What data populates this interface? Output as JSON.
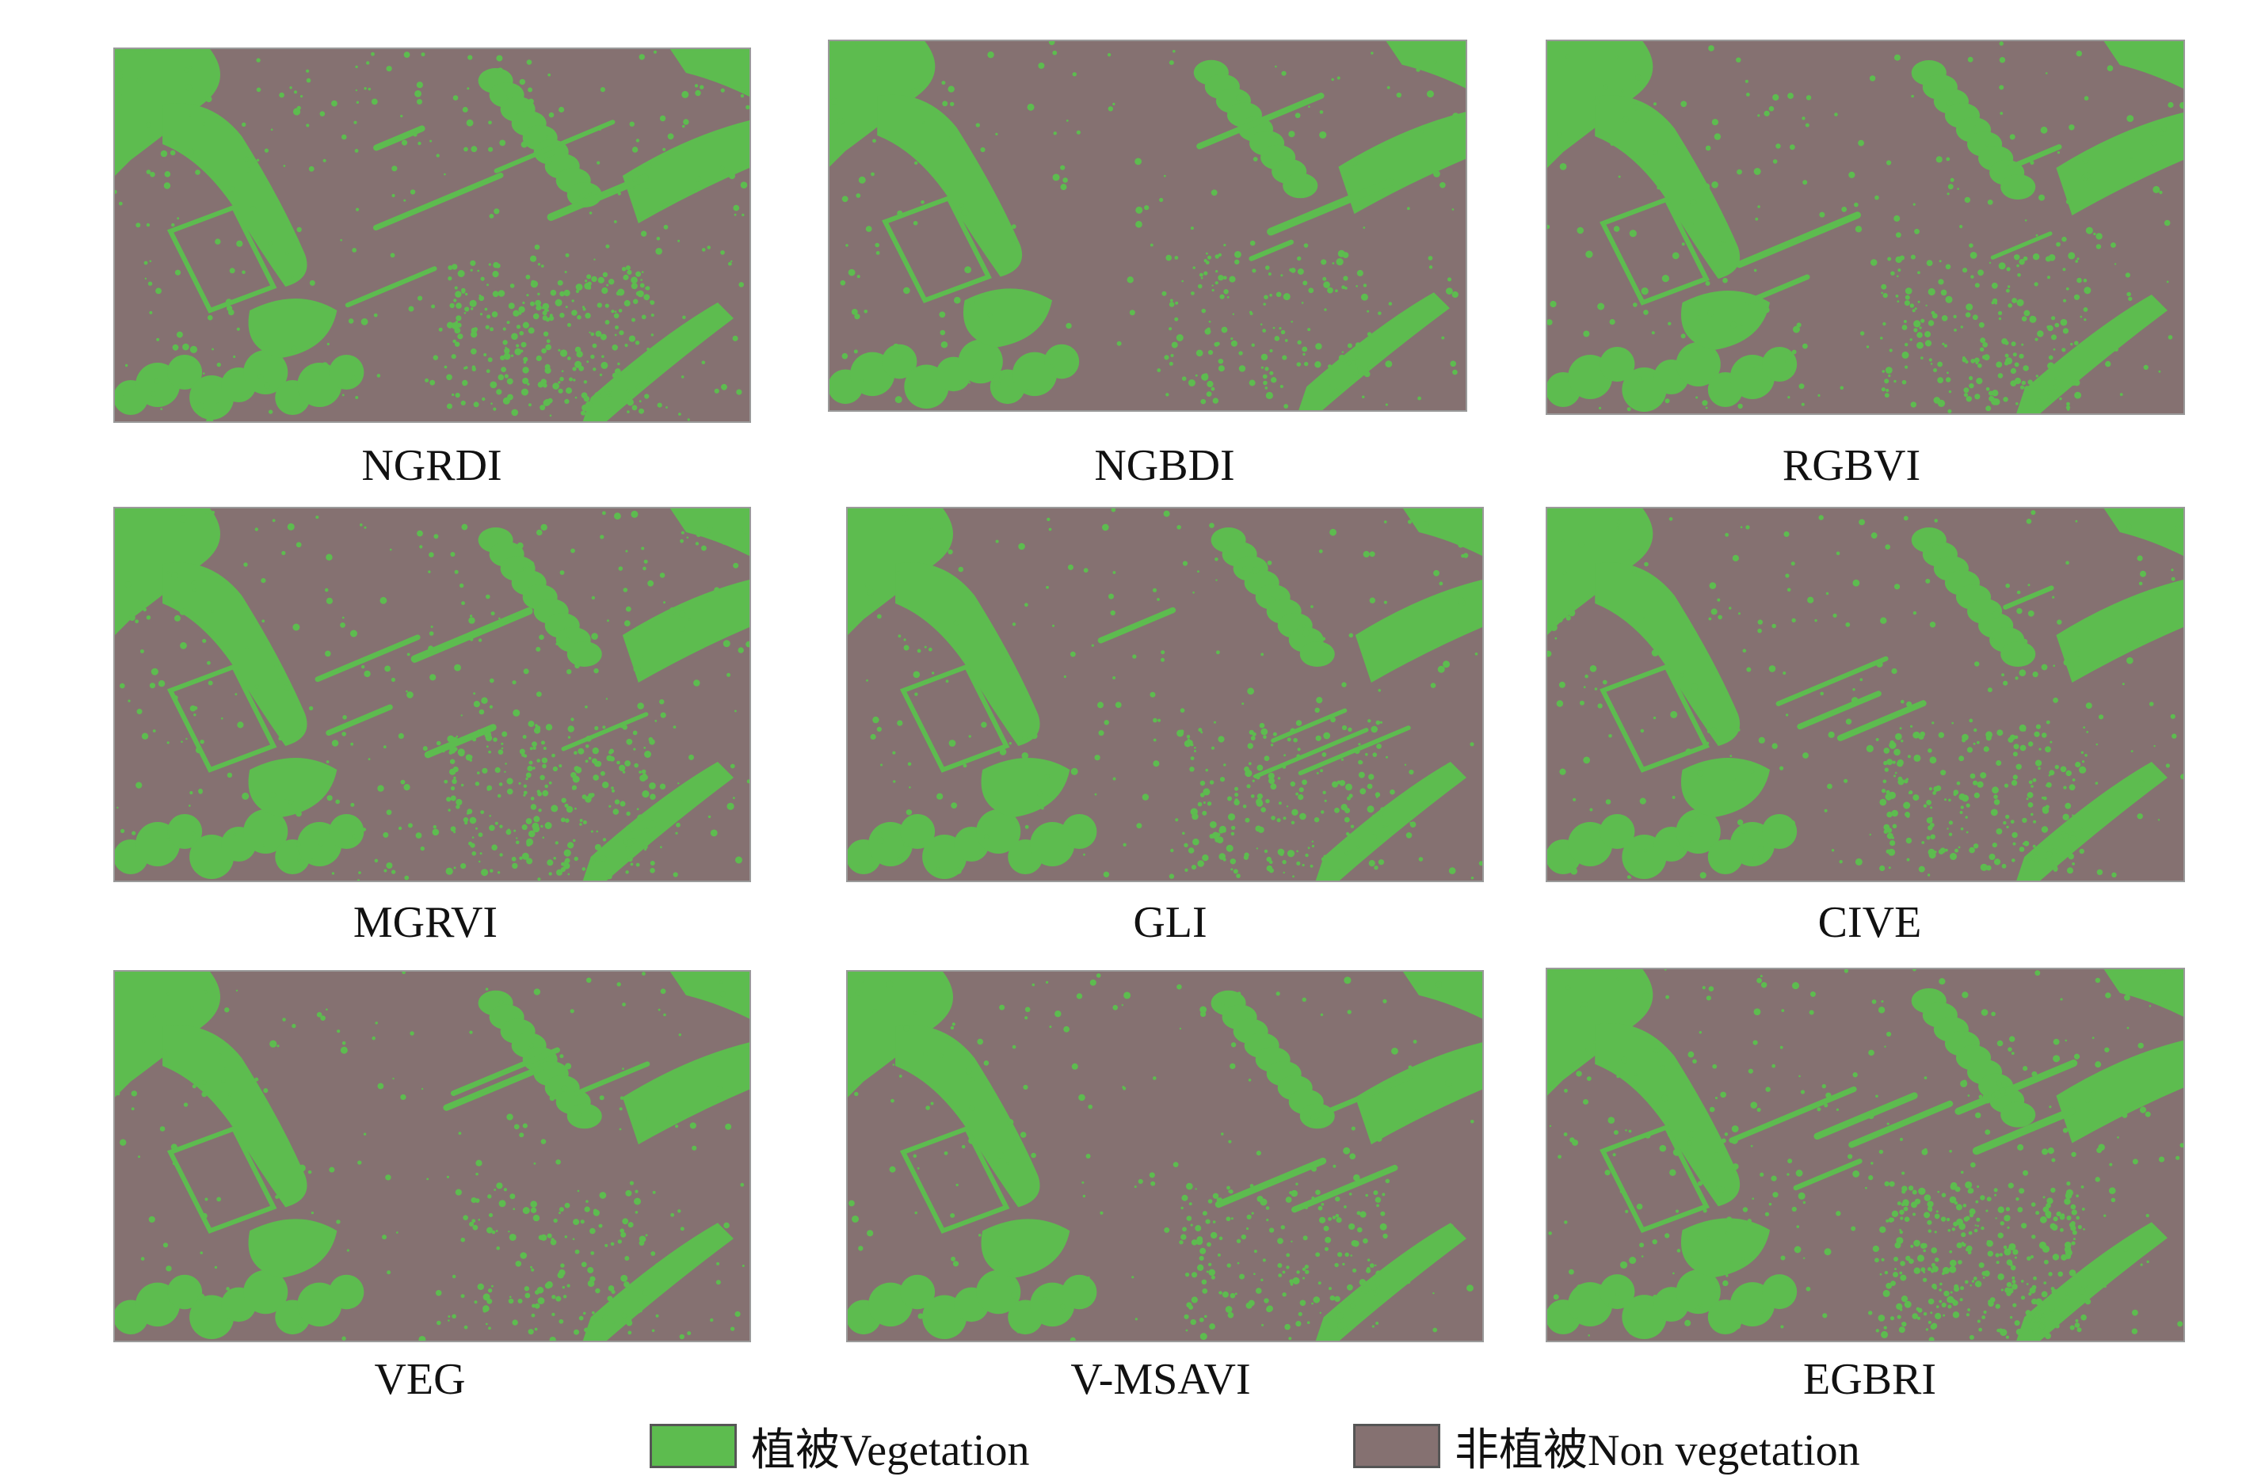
{
  "colors": {
    "vegetation": "#5dbc4f",
    "non_vegetation": "#857171",
    "border": "#9a9a9a"
  },
  "panels": [
    {
      "caption": "NGRDI"
    },
    {
      "caption": "NGBDI"
    },
    {
      "caption": "RGBVI"
    },
    {
      "caption": "MGRVI"
    },
    {
      "caption": "GLI"
    },
    {
      "caption": "CIVE"
    },
    {
      "caption": "VEG"
    },
    {
      "caption": "V-MSAVI"
    },
    {
      "caption": "EGBRI"
    }
  ],
  "legend": {
    "vegetation": {
      "label": "植被Vegetation",
      "color": "#5dbc4f"
    },
    "non_vegetation": {
      "label": "非植被Non vegetation",
      "color": "#857171"
    }
  }
}
